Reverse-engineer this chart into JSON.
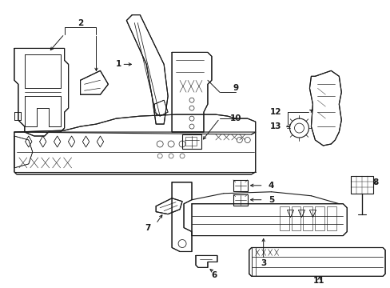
{
  "background_color": "#ffffff",
  "line_color": "#1a1a1a",
  "fig_width": 4.89,
  "fig_height": 3.6,
  "dpi": 100,
  "parts": {
    "label_fontsize": 7.5,
    "arrow_lw": 0.7
  }
}
